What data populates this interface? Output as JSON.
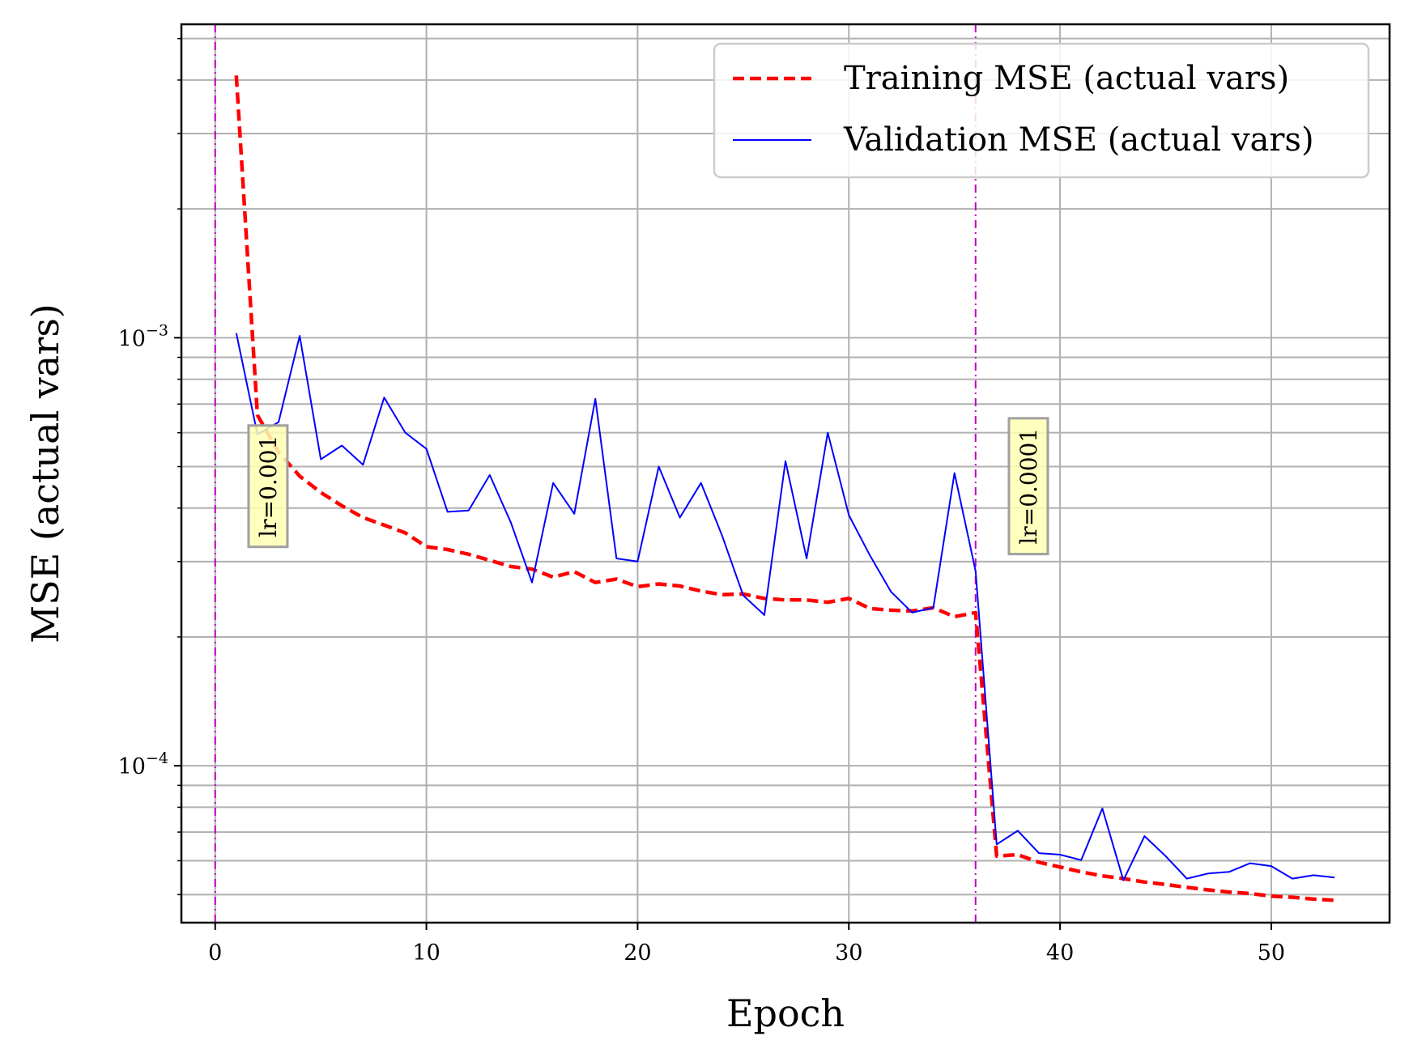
{
  "chart_data": {
    "type": "line",
    "xlabel": "Epoch",
    "ylabel": "MSE (actual vars)",
    "xlim": [
      -1.6,
      55.6
    ],
    "ylim": [
      4.3e-05,
      0.0054
    ],
    "yscale": "log",
    "grid": true,
    "legend_position": "top-right",
    "x_ticks": [
      0,
      10,
      20,
      30,
      40,
      50
    ],
    "x_tick_labels": [
      "0",
      "10",
      "20",
      "30",
      "40",
      "50"
    ],
    "y_major_ticks": [
      0.0001,
      0.001
    ],
    "y_tick_labels": [
      {
        "base": "10",
        "exp": "−4"
      },
      {
        "base": "10",
        "exp": "−3"
      }
    ],
    "series": [
      {
        "name": "Training MSE (actual vars)",
        "color": "#ff0000",
        "style": "dashed",
        "x": [
          1,
          2,
          3,
          4,
          5,
          6,
          7,
          8,
          9,
          10,
          11,
          12,
          13,
          14,
          15,
          16,
          17,
          18,
          19,
          20,
          21,
          22,
          23,
          24,
          25,
          26,
          27,
          28,
          29,
          30,
          31,
          32,
          33,
          34,
          35,
          36,
          37,
          38,
          39,
          40,
          41,
          42,
          43,
          44,
          45,
          46,
          47,
          48,
          49,
          50,
          51,
          52,
          53
        ],
        "values": [
          0.0041,
          0.00066,
          0.00054,
          0.000475,
          0.000435,
          0.000405,
          0.00038,
          0.000365,
          0.00035,
          0.000325,
          0.00032,
          0.000312,
          0.000302,
          0.000292,
          0.000288,
          0.000276,
          0.000284,
          0.000268,
          0.000273,
          0.000262,
          0.000266,
          0.000263,
          0.000256,
          0.000251,
          0.000252,
          0.000246,
          0.000244,
          0.000244,
          0.000241,
          0.000246,
          0.000233,
          0.000231,
          0.00023,
          0.000234,
          0.000223,
          0.000228,
          6.15e-05,
          6.2e-05,
          5.95e-05,
          5.8e-05,
          5.65e-05,
          5.53e-05,
          5.45e-05,
          5.35e-05,
          5.28e-05,
          5.2e-05,
          5.13e-05,
          5.07e-05,
          5.03e-05,
          4.96e-05,
          4.93e-05,
          4.88e-05,
          4.85e-05
        ]
      },
      {
        "name": "Validation MSE (actual vars)",
        "color": "#0000ff",
        "style": "solid",
        "x": [
          1,
          2,
          3,
          4,
          5,
          6,
          7,
          8,
          9,
          10,
          11,
          12,
          13,
          14,
          15,
          16,
          17,
          18,
          19,
          20,
          21,
          22,
          23,
          24,
          25,
          26,
          27,
          28,
          29,
          30,
          31,
          32,
          33,
          34,
          35,
          36,
          37,
          38,
          39,
          40,
          41,
          42,
          43,
          44,
          45,
          46,
          47,
          48,
          49,
          50,
          51,
          52,
          53
        ],
        "values": [
          0.001025,
          0.000595,
          0.000635,
          0.00101,
          0.00052,
          0.00056,
          0.000505,
          0.000725,
          0.0006,
          0.00055,
          0.000392,
          0.000395,
          0.000478,
          0.00037,
          0.000268,
          0.000458,
          0.000388,
          0.00072,
          0.000305,
          0.0003,
          0.0005,
          0.00038,
          0.000458,
          0.000345,
          0.00025,
          0.000225,
          0.000515,
          0.000305,
          0.0006,
          0.000385,
          0.00031,
          0.000255,
          0.000228,
          0.000234,
          0.000483,
          0.000285,
          6.55e-05,
          7.05e-05,
          6.25e-05,
          6.2e-05,
          6.02e-05,
          7.95e-05,
          5.4e-05,
          6.85e-05,
          6.15e-05,
          5.45e-05,
          5.6e-05,
          5.65e-05,
          5.92e-05,
          5.83e-05,
          5.45e-05,
          5.55e-05,
          5.48e-05
        ]
      }
    ],
    "vlines": [
      {
        "x": 0,
        "color": "#bf00bf",
        "style": "dashdot"
      },
      {
        "x": 36,
        "color": "#bf00bf",
        "style": "dashdot"
      }
    ],
    "annotations": [
      {
        "text": "lr=0.001",
        "x": 2.5,
        "y": 0.00045,
        "rotation": 90,
        "box_color": "#ffffb3"
      },
      {
        "text": "lr=0.0001",
        "x": 38.5,
        "y": 0.00045,
        "rotation": 90,
        "box_color": "#ffffb3"
      }
    ]
  }
}
